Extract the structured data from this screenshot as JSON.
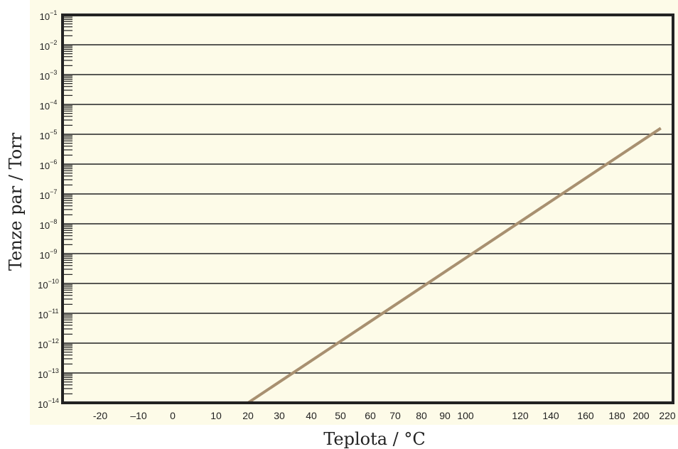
{
  "chart_data": {
    "type": "line",
    "title": "",
    "xlabel": "Teplota / °C",
    "ylabel": "Tenze par / Torr",
    "y_scale": "log",
    "ylim": [
      1e-14,
      0.1
    ],
    "y_tick_exponents": [
      -14,
      -13,
      -12,
      -11,
      -10,
      -9,
      -8,
      -7,
      -6,
      -5,
      -4,
      -3,
      -2,
      -1
    ],
    "x_tick_labels": [
      "-20",
      "–10",
      "0",
      "10",
      "20",
      "30",
      "40",
      "50",
      "60",
      "70",
      "80",
      "90",
      "100",
      "120",
      "140",
      "160",
      "180",
      "200",
      "220"
    ],
    "x_tick_values": [
      -20,
      -10,
      0,
      10,
      20,
      30,
      40,
      50,
      60,
      70,
      80,
      90,
      100,
      120,
      140,
      160,
      180,
      200,
      220
    ],
    "grid": true,
    "series": [
      {
        "x": [
          20,
          215
        ],
        "y": [
          1e-14,
          1.6e-05
        ]
      }
    ],
    "colors": {
      "background": "#fdfbe8",
      "plot_border": "#222222",
      "line": "#a89070"
    }
  }
}
